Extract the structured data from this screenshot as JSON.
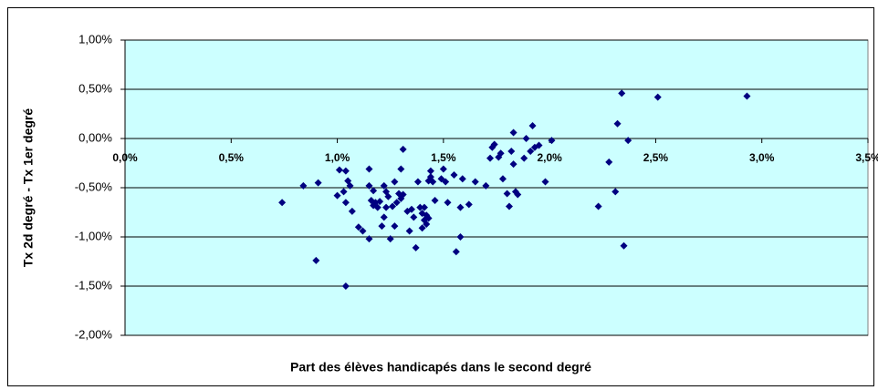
{
  "chart_data": {
    "type": "scatter",
    "x_label": "Part des élèves handicapés dans le second degré",
    "y_label": "Tx 2d degré - Tx 1er degré",
    "color": "#000080",
    "plot_background": "#ccffff",
    "grid": true,
    "xlim": [
      0,
      3.5
    ],
    "ylim": [
      -2,
      1
    ],
    "xticks": [
      {
        "value": 0,
        "label": "0,0%"
      },
      {
        "value": 0.5,
        "label": "0,5%"
      },
      {
        "value": 1,
        "label": "1,0%"
      },
      {
        "value": 1.5,
        "label": "1,5%"
      },
      {
        "value": 2,
        "label": "2,0%"
      },
      {
        "value": 2.5,
        "label": "2,5%"
      },
      {
        "value": 3,
        "label": "3,0%"
      },
      {
        "value": 3.5,
        "label": "3,5%"
      }
    ],
    "yticks": [
      {
        "value": 1,
        "label": "1,00%"
      },
      {
        "value": 0.5,
        "label": "0,50%"
      },
      {
        "value": 0,
        "label": "0,00%"
      },
      {
        "value": -0.5,
        "label": "-0,50%"
      },
      {
        "value": -1,
        "label": "-1,00%"
      },
      {
        "value": -1.5,
        "label": "-1,50%"
      },
      {
        "value": -2,
        "label": "-2,00%"
      }
    ],
    "x": [
      0.74,
      0.84,
      0.9,
      0.91,
      1.0,
      1.01,
      1.03,
      1.04,
      1.04,
      1.05,
      1.04,
      1.06,
      1.07,
      1.1,
      1.12,
      1.15,
      1.15,
      1.15,
      1.16,
      1.17,
      1.17,
      1.18,
      1.19,
      1.2,
      1.21,
      1.22,
      1.22,
      1.23,
      1.23,
      1.24,
      1.25,
      1.26,
      1.27,
      1.27,
      1.28,
      1.29,
      1.3,
      1.31,
      1.3,
      1.31,
      1.33,
      1.34,
      1.35,
      1.36,
      1.37,
      1.38,
      1.39,
      1.4,
      1.4,
      1.41,
      1.41,
      1.42,
      1.42,
      1.43,
      1.43,
      1.44,
      1.44,
      1.45,
      1.46,
      1.49,
      1.5,
      1.51,
      1.52,
      1.55,
      1.56,
      1.58,
      1.58,
      1.59,
      1.62,
      1.65,
      1.7,
      1.72,
      1.73,
      1.74,
      1.76,
      1.77,
      1.78,
      1.8,
      1.81,
      1.82,
      1.83,
      1.83,
      1.84,
      1.85,
      1.88,
      1.89,
      1.91,
      1.92,
      1.93,
      1.95,
      1.98,
      2.01,
      2.23,
      2.28,
      2.31,
      2.32,
      2.34,
      2.35,
      2.37,
      2.51,
      2.93
    ],
    "y": [
      -0.65,
      -0.48,
      -1.24,
      -0.45,
      -0.58,
      -0.32,
      -0.54,
      -1.5,
      -0.33,
      -0.43,
      -0.65,
      -0.48,
      -0.74,
      -0.9,
      -0.94,
      -1.02,
      -0.31,
      -0.48,
      -0.63,
      -0.53,
      -0.68,
      -0.65,
      -0.7,
      -0.64,
      -0.89,
      -0.8,
      -0.48,
      -0.54,
      -0.7,
      -0.59,
      -1.02,
      -0.69,
      -0.89,
      -0.44,
      -0.65,
      -0.56,
      -0.61,
      -0.57,
      -0.31,
      -0.11,
      -0.74,
      -0.94,
      -0.72,
      -0.8,
      -1.11,
      -0.44,
      -0.7,
      -0.91,
      -0.76,
      -0.83,
      -0.7,
      -0.87,
      -0.78,
      -0.81,
      -0.43,
      -0.39,
      -0.33,
      -0.44,
      -0.63,
      -0.41,
      -0.31,
      -0.44,
      -0.65,
      -0.37,
      -1.15,
      -0.7,
      -1.0,
      -0.41,
      -0.67,
      -0.44,
      -0.48,
      -0.2,
      -0.09,
      -0.06,
      -0.19,
      -0.15,
      -0.41,
      -0.56,
      -0.69,
      -0.13,
      0.06,
      -0.26,
      -0.54,
      -0.57,
      -0.2,
      0.0,
      -0.13,
      0.13,
      -0.09,
      -0.07,
      -0.44,
      -0.02,
      -0.69,
      -0.24,
      -0.54,
      0.15,
      0.46,
      -1.09,
      -0.02,
      0.42,
      0.43
    ]
  }
}
